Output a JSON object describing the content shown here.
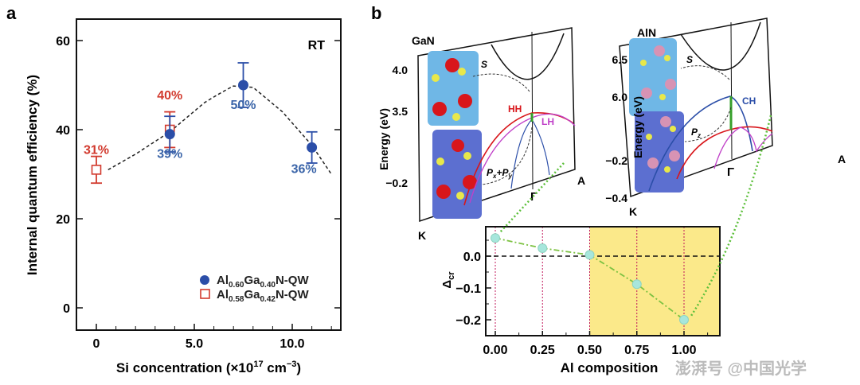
{
  "panels": {
    "a": "a",
    "b": "b"
  },
  "chart_data": [
    {
      "type": "scatter",
      "panel": "a",
      "xlabel": "Si concentration (×10",
      "xlabel_sup1": "17",
      "xlabel_mid": " cm",
      "xlabel_sup2": "−3",
      "xlabel_end": ")",
      "ylabel": "Internal quantum efficiency (%)",
      "xlim": [
        -1,
        12.5
      ],
      "ylim": [
        -5,
        65
      ],
      "xticks": [
        {
          "v": 0,
          "label": "0"
        },
        {
          "v": 5,
          "label": "5.0"
        },
        {
          "v": 10,
          "label": "10.0"
        }
      ],
      "yticks": [
        {
          "v": 0,
          "label": "0"
        },
        {
          "v": 20,
          "label": "20"
        },
        {
          "v": 40,
          "label": "40"
        },
        {
          "v": 60,
          "label": "60"
        }
      ],
      "annotation": "RT",
      "legend_position": "bottom-right",
      "series": [
        {
          "name_parts": [
            "Al",
            "0.60",
            "Ga",
            "0.40",
            "N-QW"
          ],
          "marker": "filled-circle",
          "color": "#2b4ea8",
          "points": [
            {
              "x": 3.75,
              "y": 39,
              "err_low": 35,
              "err_high": 43,
              "label": "39%"
            },
            {
              "x": 7.5,
              "y": 50,
              "err_low": 45,
              "err_high": 55,
              "label": "50%"
            },
            {
              "x": 11,
              "y": 36,
              "err_low": 32.5,
              "err_high": 39.5,
              "label": "36%"
            }
          ]
        },
        {
          "name_parts": [
            "Al",
            "0.58",
            "Ga",
            "0.42",
            "N-QW"
          ],
          "marker": "open-square",
          "color": "#d23a2e",
          "points": [
            {
              "x": 0,
              "y": 31,
              "err_low": 28,
              "err_high": 34,
              "label": "31%"
            },
            {
              "x": 3.75,
              "y": 40,
              "err_low": 36,
              "err_high": 44,
              "label": "40%"
            }
          ]
        }
      ],
      "fit_curve": {
        "style": "dashed",
        "x": [
          0.6,
          2,
          3.75,
          5.5,
          7,
          8,
          9.5,
          11,
          12
        ],
        "y": [
          31,
          34.5,
          39.5,
          46,
          49.8,
          49.5,
          44,
          36.5,
          30
        ]
      }
    },
    {
      "type": "line",
      "panel": "b",
      "xlabel": "Al composition",
      "ylabel": "Δ",
      "ylabel_sub": "cr",
      "xlim": [
        -0.05,
        1.2
      ],
      "ylim": [
        -0.25,
        0.095
      ],
      "xticks": [
        {
          "v": 0,
          "label": "0.00"
        },
        {
          "v": 0.25,
          "label": "0.25"
        },
        {
          "v": 0.5,
          "label": "0.50"
        },
        {
          "v": 0.75,
          "label": "0.75"
        },
        {
          "v": 1,
          "label": "1.00"
        }
      ],
      "yticks": [
        {
          "v": 0,
          "label": "0.0"
        },
        {
          "v": -0.1,
          "label": "−0.1"
        },
        {
          "v": -0.2,
          "label": "−0.2"
        }
      ],
      "highlight_region": {
        "from": 0.5,
        "to": 1.2,
        "color": "#fbe98a"
      },
      "zero_line": true,
      "x": [
        0,
        0.25,
        0.5,
        0.75,
        1.0
      ],
      "values": [
        0.057,
        0.025,
        0.004,
        -0.088,
        -0.2
      ],
      "colors": {
        "marker": "#a7e6dc",
        "line": "#7dc242",
        "vline": "#c2185b"
      }
    }
  ],
  "diagram": {
    "gan": {
      "title": "GaN",
      "yticks": [
        "4.0",
        "3.5",
        "−0.2"
      ],
      "ylabel": "Energy (eV)",
      "k": "K",
      "gamma": "Γ",
      "a": "A",
      "hh": "HH",
      "lh": "LH",
      "s": "S",
      "pxpy": "P",
      "px_sub": "x",
      "plus": "+P",
      "py_sub": "y"
    },
    "aln": {
      "title": "AlN",
      "yticks": [
        "6.5",
        "6.0",
        "−0.2",
        "−0.4"
      ],
      "ylabel": "Energy (eV)",
      "k": "K",
      "gamma": "Γ",
      "a": "A",
      "ch": "CH",
      "s": "S",
      "pz": "P",
      "pz_sub": "z"
    }
  },
  "watermark": "澎湃号 @中国光学"
}
